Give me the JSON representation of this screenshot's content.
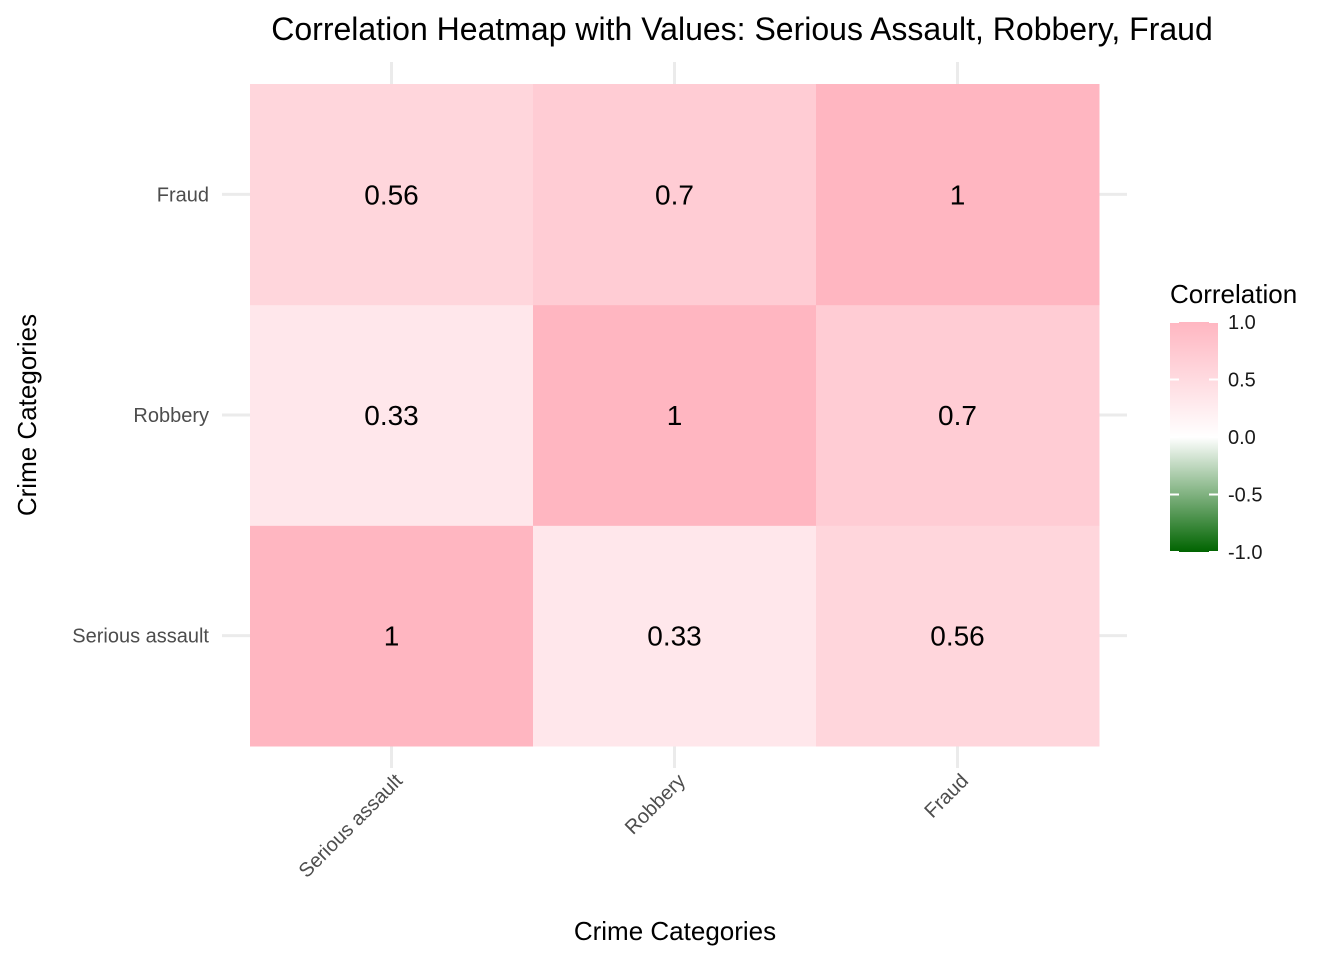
{
  "chart_data": {
    "type": "heatmap",
    "title": "Correlation Heatmap with Values: Serious Assault, Robbery, Fraud",
    "xlabel": "Crime Categories",
    "ylabel": "Crime Categories",
    "x_categories": [
      "Serious assault",
      "Robbery",
      "Fraud"
    ],
    "y_categories": [
      "Serious assault",
      "Robbery",
      "Fraud"
    ],
    "values": [
      [
        1,
        0.33,
        0.56
      ],
      [
        0.33,
        1,
        0.7
      ],
      [
        0.56,
        0.7,
        1
      ]
    ],
    "value_labels": [
      [
        "1",
        "0.33",
        "0.56"
      ],
      [
        "0.33",
        "1",
        "0.7"
      ],
      [
        "0.56",
        "0.7",
        "1"
      ]
    ],
    "legend": {
      "title": "Correlation",
      "range": [
        -1,
        1
      ],
      "tick_values": [
        1,
        0.5,
        0,
        -0.5,
        -1
      ],
      "tick_labels": [
        "1.0",
        "0.5",
        "0.0",
        "-0.5",
        "-1.0"
      ],
      "colors": {
        "low": "#006400",
        "mid": "#ffffff",
        "high": "#ffb6c1"
      }
    },
    "grid": true,
    "legend_position": "right"
  }
}
